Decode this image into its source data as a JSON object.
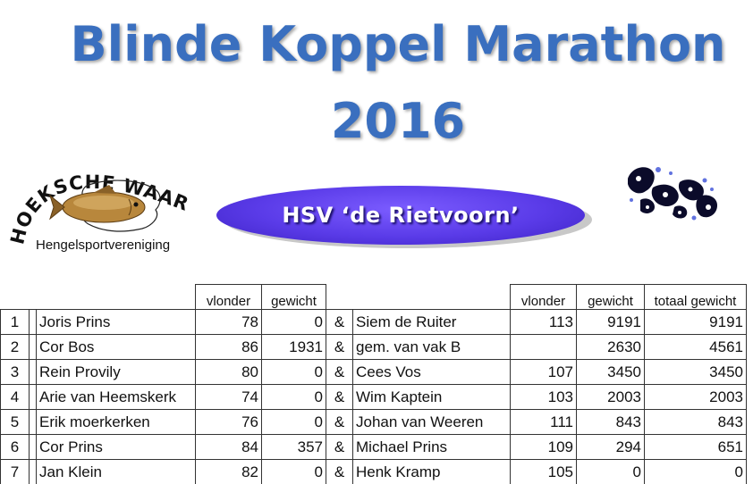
{
  "title": {
    "line1": "Blinde Koppel Marathon",
    "line2": "2016"
  },
  "logo_left": {
    "arc_text": "HOEKSCHE WAARD",
    "subtitle": "Hengelsportvereniging"
  },
  "banner": {
    "text": "HSV ‘de Rietvoorn’"
  },
  "colors": {
    "title": "#3a6fbf",
    "banner": "#5a3be8"
  },
  "table": {
    "headers": {
      "vlonder1": "vlonder",
      "gewicht1": "gewicht",
      "vlonder2": "vlonder",
      "gewicht2": "gewicht",
      "totaal": "totaal gewicht"
    },
    "rows": [
      {
        "rank": "1",
        "name1": "Joris Prins",
        "vlonder1": "78",
        "gewicht1": "0",
        "amp": "&",
        "name2": "Siem de Ruiter",
        "vlonder2": "113",
        "gewicht2": "9191",
        "totaal": "9191"
      },
      {
        "rank": "2",
        "name1": "Cor Bos",
        "vlonder1": "86",
        "gewicht1": "1931",
        "amp": "&",
        "name2": "gem. van vak B",
        "vlonder2": "",
        "gewicht2": "2630",
        "totaal": "4561"
      },
      {
        "rank": "3",
        "name1": "Rein Provily",
        "vlonder1": "80",
        "gewicht1": "0",
        "amp": "&",
        "name2": "Cees Vos",
        "vlonder2": "107",
        "gewicht2": "3450",
        "totaal": "3450"
      },
      {
        "rank": "4",
        "name1": "Arie van Heemskerk",
        "vlonder1": "74",
        "gewicht1": "0",
        "amp": "&",
        "name2": "Wim Kaptein",
        "vlonder2": "103",
        "gewicht2": "2003",
        "totaal": "2003"
      },
      {
        "rank": "5",
        "name1": "Erik moerkerken",
        "vlonder1": "76",
        "gewicht1": "0",
        "amp": "&",
        "name2": "Johan van Weeren",
        "vlonder2": "111",
        "gewicht2": "843",
        "totaal": "843"
      },
      {
        "rank": "6",
        "name1": "Cor Prins",
        "vlonder1": "84",
        "gewicht1": "357",
        "amp": "&",
        "name2": "Michael Prins",
        "vlonder2": "109",
        "gewicht2": "294",
        "totaal": "651"
      },
      {
        "rank": "7",
        "name1": "Jan Klein",
        "vlonder1": "82",
        "gewicht1": "0",
        "amp": "&",
        "name2": "Henk Kramp",
        "vlonder2": "105",
        "gewicht2": "0",
        "totaal": "0"
      }
    ]
  }
}
